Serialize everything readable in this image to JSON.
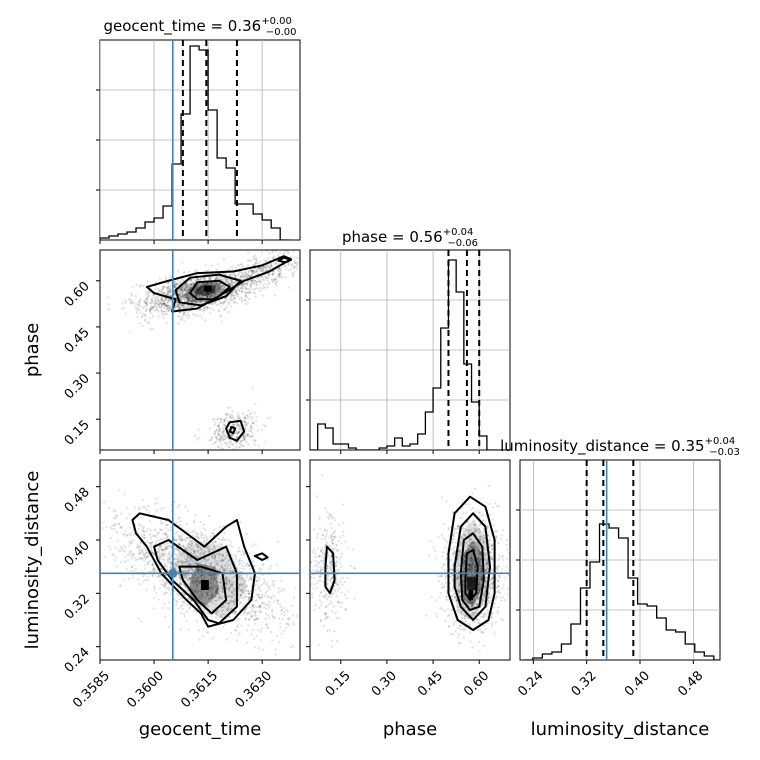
{
  "chart_data": {
    "type": "corner",
    "parameters": [
      "geocent_time",
      "phase",
      "luminosity_distance"
    ],
    "truths": {
      "geocent_time": 0.36052,
      "phase": null,
      "luminosity_distance": 0.35
    },
    "titles": [
      {
        "param": "geocent_time",
        "text": "geocent_time = 0.36",
        "plus": "+0.00",
        "minus": "−0.00"
      },
      {
        "param": "phase",
        "text": "phase = 0.56",
        "plus": "+0.04",
        "minus": "−0.06"
      },
      {
        "param": "luminosity_distance",
        "text": "luminosity_distance = 0.35",
        "plus": "+0.04",
        "minus": "−0.03"
      }
    ],
    "ranges": {
      "geocent_time": [
        0.3585,
        0.36405
      ],
      "phase": [
        0.05,
        0.7
      ],
      "luminosity_distance": [
        0.22,
        0.52
      ]
    },
    "ticks": {
      "geocent_time": [
        "0.3585",
        "0.3600",
        "0.3615",
        "0.3630"
      ],
      "phase": [
        "0.15",
        "0.30",
        "0.45",
        "0.60"
      ],
      "luminosity_distance": [
        "0.24",
        "0.32",
        "0.40",
        "0.48"
      ]
    },
    "quantiles": {
      "geocent_time": [
        0.3608,
        0.36145,
        0.3623
      ],
      "phase": [
        0.5,
        0.56,
        0.6
      ],
      "luminosity_distance": [
        0.32,
        0.345,
        0.39
      ]
    },
    "hist1d": {
      "geocent_time": {
        "edges_start": 0.3585,
        "bin_width": 0.00025,
        "counts": [
          0.01,
          0.02,
          0.03,
          0.04,
          0.06,
          0.09,
          0.11,
          0.17,
          0.38,
          0.63,
          0.97,
          0.95,
          0.65,
          0.41,
          0.36,
          0.18,
          0.18,
          0.13,
          0.1,
          0.06,
          0.0
        ]
      },
      "phase": {
        "edges_start": 0.05,
        "bin_width": 0.025,
        "counts": [
          0.0,
          0.13,
          0.11,
          0.03,
          0.03,
          0.01,
          0.0,
          0.0,
          0.0,
          0.01,
          0.02,
          0.06,
          0.02,
          0.03,
          0.08,
          0.19,
          0.31,
          0.61,
          0.95,
          0.79,
          0.43,
          0.24,
          0.07,
          0.0,
          0.0,
          0.0
        ]
      },
      "luminosity_distance": {
        "edges_start": 0.225,
        "bin_width": 0.0142857,
        "counts": [
          0.0,
          0.01,
          0.03,
          0.04,
          0.08,
          0.18,
          0.36,
          0.49,
          0.68,
          0.66,
          0.61,
          0.41,
          0.28,
          0.27,
          0.21,
          0.15,
          0.14,
          0.08,
          0.04,
          0.02,
          0.0
        ]
      }
    }
  }
}
